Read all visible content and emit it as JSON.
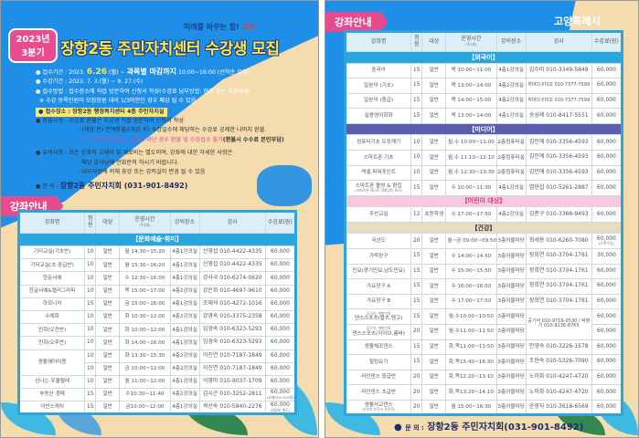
{
  "left": {
    "badge": {
      "year": "2023년",
      "quarter": "3분기"
    },
    "slogan": {
      "text": "미래를 바꾸는 힘!",
      "brand": "고양"
    },
    "title": "장항2동 주민자치센터 수강생 모집",
    "info": {
      "reg_period_label": "접수기간 : 2023.",
      "reg_period_date": "6.26",
      "reg_period_day": ".(월) ~",
      "reg_period_deadline": "과목별 마감까지",
      "reg_period_time": "10:00~16:00 (선착순 모집)",
      "course_period": "수강기간 : 2023. 7. 3.(월) ~ 9. 27.(수)",
      "method": "접수방법 : 접수장소에 직접 방문하여 신청서 작성(수강료 납부방법: 현금 또는 계좌이체)",
      "note": "※ 수강 등록인원이 모집정원 대비 1/3미만인 경우 폐강 될 수 있음",
      "place": "접수장소 : 장항2동 행정복지센터 4층 주민자치실",
      "refund_1": "환불규정  - 수강료 환불은 수강생 직접 방문하여 신청서 작성",
      "refund_2": "- (개강 전) 전액환불/(개강 후) 수강일수에 해당하는 수강료 공제한 나머지 환불.",
      "refund_3": "단, 전체 수강기간의 1/2이 지난 경우 환불 및 수강접수 불가",
      "refund_3b": "(환불시 수수료 본인부담)",
      "caution_1": "유의사항  - 모든 강좌의 교재비 및 재료비는 별도이며, 강좌에 대한 자세한 사항은",
      "caution_2": "해당 강사님께  전화문의 하시기 바랍니다.",
      "caution_3": "- 내부사정에 의해 휴강 또는 강의실이 변경 될 수 있음",
      "contact_label": "문    의 :",
      "contact": "장항2동 주민자치회 (031-901-8492)"
    },
    "section_tag": "강좌안내",
    "table": {
      "headers": [
        "강좌명",
        "정원",
        "대상",
        "운영시간",
        "강의장소",
        "강사",
        "수강료(원)"
      ],
      "header_sub": "(주1회)",
      "sections": [
        {
          "title": "【문화예술·취미】",
          "color": "#2aa6de",
          "text_color": "#ffffff",
          "rows": [
            [
              "기타교실(기초반)",
              "10",
              "일반",
              "월 14:30~15:20",
              "4층1강의실",
              "신영섭 010-4422-4335",
              "60,000"
            ],
            [
              "기타교실(초·중급반)",
              "10",
              "일반",
              "월 15:30~16:20",
              "4층1강의실",
              "신영섭 010-4422-4335",
              "60,000"
            ],
            [
              "한문서예",
              "10",
              "일반",
              "수 12:30~16:00",
              "4층1강의실",
              "강사국 010-6274-0620",
              "60,000"
            ],
            [
              "한글서예&캘리그라피",
              "10",
              "일반",
              "목 15:00~17:00",
              "4층2강의실",
              "강은희 010-4697-9610",
              "60,000"
            ],
            [
              "하모니카",
              "15",
              "일반",
              "금 15:00~16:00",
              "4층1강의실",
              "조재석 010-4272-1016",
              "60,000"
            ],
            [
              "수채화",
              "10",
              "일반",
              "화 10:30~12:00",
              "4층2강의실",
              "강영숙 010-3375-2358",
              "60,000"
            ],
            [
              "민화(오전반)",
              "10",
              "일반",
              "화 10:00~12:00",
              "4층1강의실",
              "임경숙 010-6323-5293",
              "60,000"
            ],
            [
              "민화(오후반)",
              "10",
              "일반",
              "화 14:00~16:00",
              "4층1강의실",
              "임경숙 010-6323-5293",
              "60,000"
            ],
            [
              "생활헤어미용",
              "10",
              "일반",
              "화 13:30~15:30",
              "4층2강의실",
              "이진연 010-7187-1849",
              "60,000"
            ],
            [
              "",
              "10",
              "일반",
              "금 10:00~12:00",
              "4층2강의실",
              "이진연 010-7187-1849",
              "60,000"
            ],
            [
              "신나는 우쿨렐레",
              "10",
              "일반",
              "월 11:00~12:00",
              "4층1강의실",
              "이영미 010-9037-1709",
              "60,000"
            ],
            [
              "부동산 경매",
              "15",
              "일반",
              "수10:30~11:40",
              "4층2강의실",
              "김시곤 010-3252-2811",
              "60,000"
            ],
            [
              "어반스케치",
              "15",
              "일반",
              "금10:00~12:00",
              "4층1강의실",
              "곽선숙 010-5840-2276",
              "60,000"
            ]
          ],
          "fee_notes": {
            "11": "(교재비10,000원)",
            "12": "(재료비 별도)"
          }
        }
      ]
    }
  },
  "right": {
    "section_tag": "강좌안내",
    "brand": "고양특례시",
    "table": {
      "headers": [
        "강좌명",
        "정원",
        "대상",
        "운영시간",
        "강의장소",
        "강사",
        "수강료(원)"
      ],
      "header_sub": "(주1회)",
      "sections": [
        {
          "title": "【외국어】",
          "color": "#2aa6de",
          "text_color": "#ffffff",
          "rows": [
            [
              "중국어",
              "15",
              "일반",
              "목 10:00~11:00",
              "4층1강의실",
              "김수미 010-3349-5849",
              "60,000"
            ],
            [
              "일본어 (기초)",
              "15",
              "일반",
              "목 13:00~14:00",
              "4층2강의실",
              "하마다구미꼬 010-7377-7599",
              "60,000"
            ],
            [
              "일본어 (중급)",
              "15",
              "일반",
              "목 14:00~15:00",
              "4층2강의실",
              "하마다구미꼬 010-7377-7599",
              "60,000"
            ],
            [
              "실용영어회화",
              "15",
              "일반",
              "목 13:00~14:00",
              "4층1강의실",
              "송성례 010-8417-5551",
              "60,000"
            ]
          ]
        },
        {
          "title": "【미디어】",
          "color": "#5a5db0",
          "text_color": "#ffffff",
          "rows": [
            [
              "컴퓨터기초 도장깨기",
              "10",
              "일반",
              "월,수 10:00~11:00",
              "2층컴퓨터실",
              "김민애 010-3356-4593",
              "60,000"
            ],
            [
              "스마트폰 기초",
              "10",
              "일반",
              "월,수 11:10~12:10",
              "2층컴퓨터실",
              "김민애 010-3356-4593",
              "60,000"
            ],
            [
              "엑셀,파워포인트",
              "10",
              "일반",
              "월,수 12:30~13:30",
              "2층컴퓨터실",
              "김민애 010-3356-4593",
              "60,000"
            ],
            [
              "스마트폰 촬영 & 편집",
              "15",
              "일반",
              "수 10:00~11:30",
              "4층1강의실",
              "염현섭 010-5261-2887",
              "60,000"
            ]
          ],
          "name_notes": {
            "3": "(스마트폰 하나로 영화감독 되기)"
          }
        },
        {
          "title": "【어린이 대상】",
          "color": "#f6c9de",
          "text_color": "#e2367f",
          "rows": [
            [
              "주산교실",
              "12",
              "초등학생",
              "수 17:00~17:50",
              "4층2강의실",
              "김준구 010-3366-9493",
              "60,000"
            ]
          ]
        },
        {
          "title": "【건강】",
          "color": "#e9dcc0",
          "text_color": "#333333",
          "rows": [
            [
              "국선도",
              "20",
              "일반",
              "월~금 09:00~09:50",
              "3층어울마당",
              "최세용 010-6260-7080",
              "60,000"
            ],
            [
              "가락장구",
              "15",
              "일반",
              "수 14:00~14:50",
              "3층어울마당",
              "장희연 010-3704-1761",
              "30,000"
            ],
            [
              "민요(경기민요,남도민요)",
              "15",
              "일반",
              "수 15:00~15:50",
              "3층어울마당",
              "장희연 010-3704-1761",
              "60,000"
            ],
            [
              "가요장구 A",
              "15",
              "일반",
              "수 16:00~16:50",
              "3층어울마당",
              "장희연 010-3704-1761",
              "60,000"
            ],
            [
              "가요장구 B",
              "15",
              "일반",
              "수 17:00~17:50",
              "3층어울마당",
              "장희연 010-3704-1761",
              "60,000"
            ],
            [
              "댄스스포츠(왈츠,탱고)",
              "15",
              "일반",
              "월,수10:00~10:50",
              "3층어울마당",
              "공기석 010-9716-0530 / 박향기 010-9138-8765",
              "60,000"
            ],
            [
              "댄스스포츠(자이브,룸바)",
              "20",
              "일반",
              "월,수11:00~11:50",
              "3층어울마당",
              "",
              "60,000"
            ],
            [
              "생활체조댄스",
              "15",
              "일반",
              "화,목11:00~11:50",
              "3층어울마당",
              "안영숙 010-3226-1578",
              "60,000"
            ],
            [
              "힐링요가",
              "15",
              "일반",
              "화,목15:40~16:30",
              "3층어울마당",
              "조현숙 010-5326-7090",
              "60,000"
            ],
            [
              "라인댄스 중급반",
              "20",
              "일반",
              "화,목12:20~13:10",
              "3층어울마당",
              "노미화 010-4247-4720",
              "60,000"
            ],
            [
              "라인댄스 초급반",
              "20",
              "일반",
              "화,목13:20~14:10",
              "3층어울마당",
              "노미화 010-4247-4720",
              "60,000"
            ],
            [
              "생활사교댄스",
              "20",
              "일반",
              "월 15:00~16:30",
              "3층어울마당",
              "윤광자 010-3618-6569",
              "60,000"
            ]
          ],
          "name_notes": {
            "5": "공기석, 박향기의",
            "6": "공기석, 박향기의",
            "11": "(지루박,브루스,트로트)"
          },
          "fee_notes": {
            "0": "(도복구입)"
          }
        }
      ]
    },
    "contact_label": "문    의 :",
    "contact": "장항2동 주민자치회(031-901-8492)"
  }
}
